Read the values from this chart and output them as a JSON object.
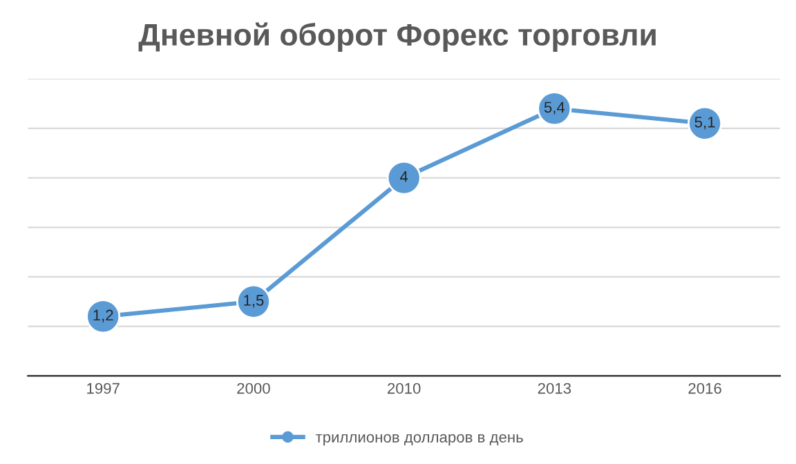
{
  "chart_data": {
    "type": "line",
    "title": "Дневной оборот Форекс торговли",
    "categories": [
      "1997",
      "2000",
      "2010",
      "2013",
      "2016"
    ],
    "series": [
      {
        "name": "триллионов долларов в день",
        "color": "#5b9bd5",
        "values": [
          1.2,
          1.5,
          4,
          5.4,
          5.1
        ],
        "value_labels": [
          "1,2",
          "1,5",
          "4",
          "5,4",
          "5,1"
        ]
      }
    ],
    "ylim": [
      0,
      6
    ],
    "yticks": [
      {
        "value": 0,
        "label": null
      },
      {
        "value": 1,
        "label": null
      },
      {
        "value": 2,
        "label": null
      },
      {
        "value": 3,
        "label": null
      },
      {
        "value": 4,
        "label": null
      },
      {
        "value": 5,
        "label": null
      },
      {
        "value": 6,
        "label": null
      }
    ],
    "grid": "y",
    "tick_labels": "x",
    "legend": "bottom",
    "marker": "circle",
    "line_style": "solid"
  }
}
